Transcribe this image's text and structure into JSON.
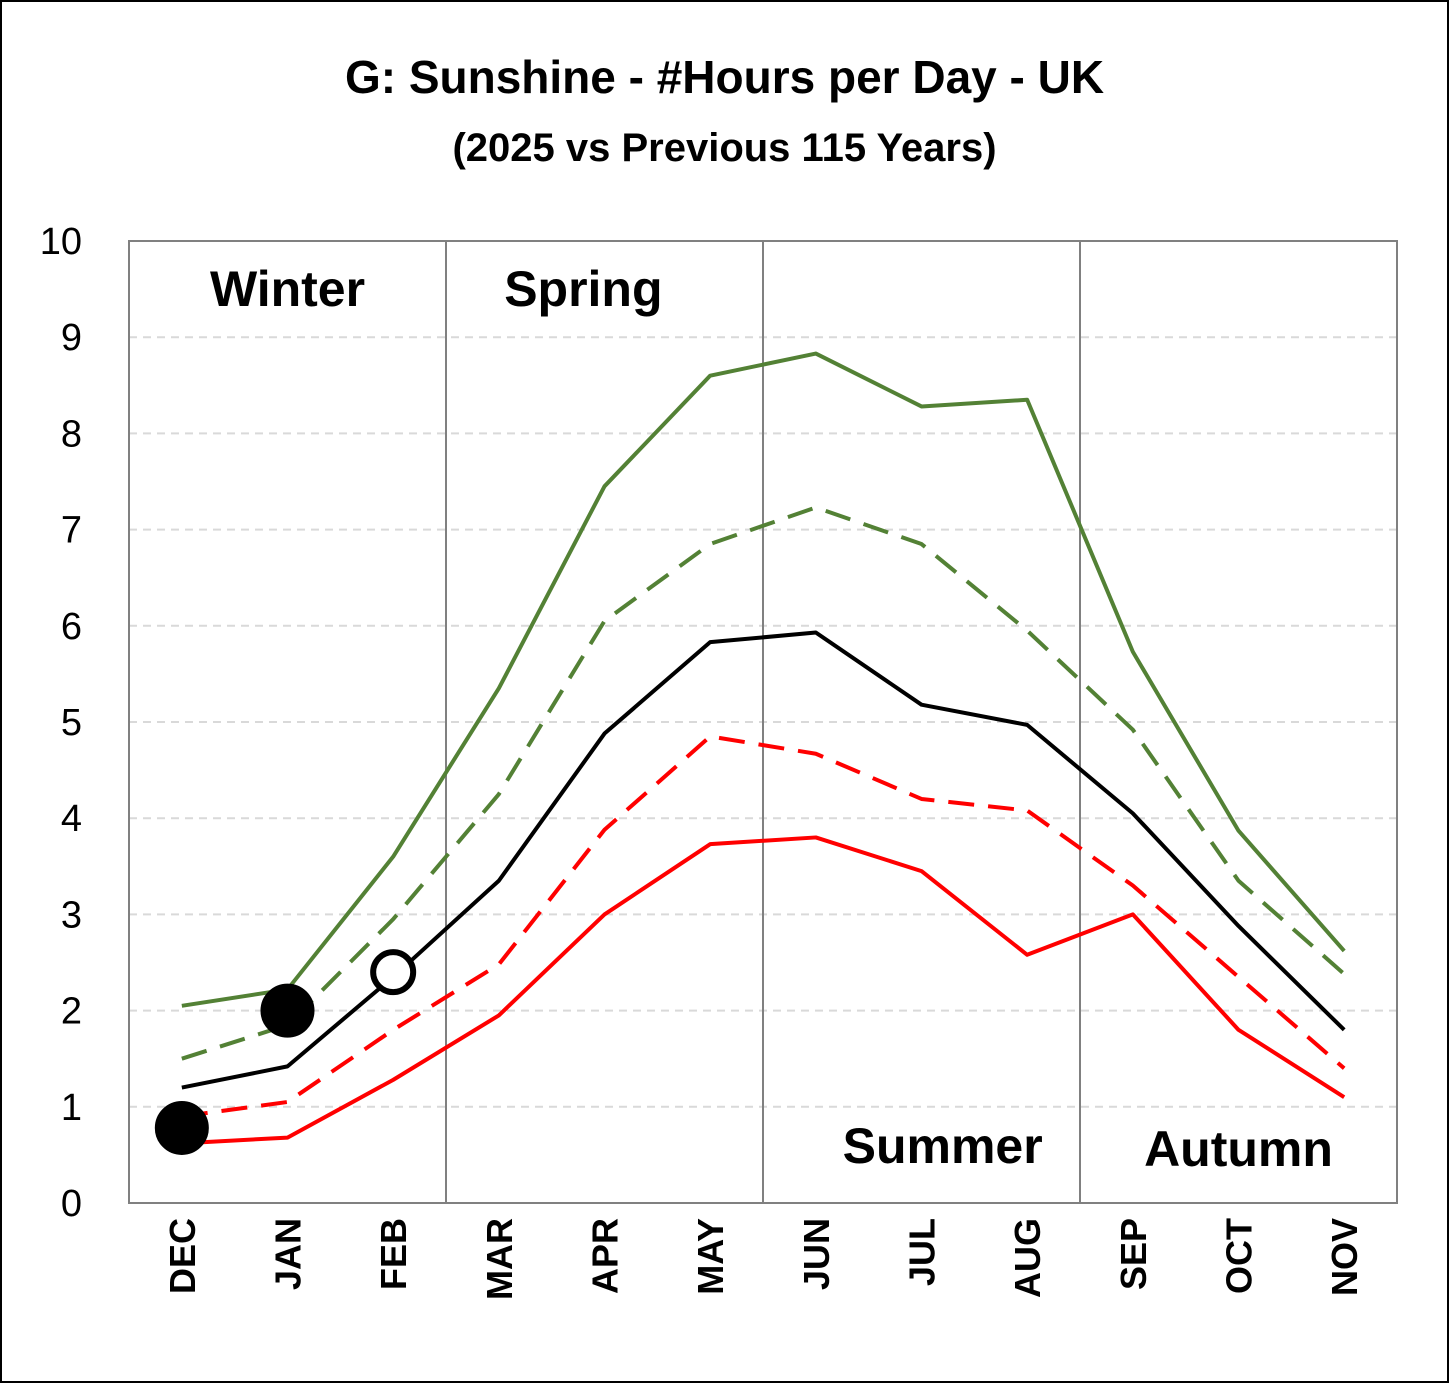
{
  "chart_data": {
    "type": "line",
    "title": "G: Sunshine - #Hours per Day - UK",
    "subtitle": "(2025 vs Previous 115 Years)",
    "categories": [
      "DEC",
      "JAN",
      "FEB",
      "MAR",
      "APR",
      "MAY",
      "JUN",
      "JUL",
      "AUG",
      "SEP",
      "OCT",
      "NOV"
    ],
    "ylim": [
      0,
      10
    ],
    "yticks": [
      0,
      1,
      2,
      3,
      4,
      5,
      6,
      7,
      8,
      9,
      10
    ],
    "grid": true,
    "season_labels": [
      "Winter",
      "Spring",
      "Summer",
      "Autumn"
    ],
    "series": [
      {
        "color": "#538135",
        "dash": "solid",
        "values": [
          2.05,
          2.22,
          3.6,
          5.35,
          7.45,
          8.6,
          8.83,
          8.28,
          8.35,
          5.73,
          3.87,
          2.62
        ]
      },
      {
        "color": "#538135",
        "dash": "dashed",
        "values": [
          1.5,
          1.85,
          2.95,
          4.25,
          6.05,
          6.85,
          7.23,
          6.85,
          5.95,
          4.92,
          3.35,
          2.38
        ]
      },
      {
        "color": "#000000",
        "dash": "solid",
        "values": [
          1.2,
          1.42,
          2.35,
          3.35,
          4.88,
          5.83,
          5.93,
          5.18,
          4.97,
          4.05,
          2.88,
          1.8
        ]
      },
      {
        "color": "#ff0000",
        "dash": "dashed",
        "values": [
          0.9,
          1.05,
          1.8,
          2.48,
          3.88,
          4.85,
          4.67,
          4.2,
          4.08,
          3.3,
          2.35,
          1.4
        ]
      },
      {
        "color": "#ff0000",
        "dash": "solid",
        "values": [
          0.62,
          0.68,
          1.28,
          1.95,
          3.0,
          3.73,
          3.8,
          3.45,
          2.58,
          3.0,
          1.8,
          1.1
        ]
      }
    ],
    "markers_2025": [
      {
        "month": "DEC",
        "value": 0.78,
        "fill": "filled"
      },
      {
        "month": "JAN",
        "value": 2.0,
        "fill": "filled"
      },
      {
        "month": "FEB",
        "value": 2.4,
        "fill": "hollow"
      }
    ]
  }
}
